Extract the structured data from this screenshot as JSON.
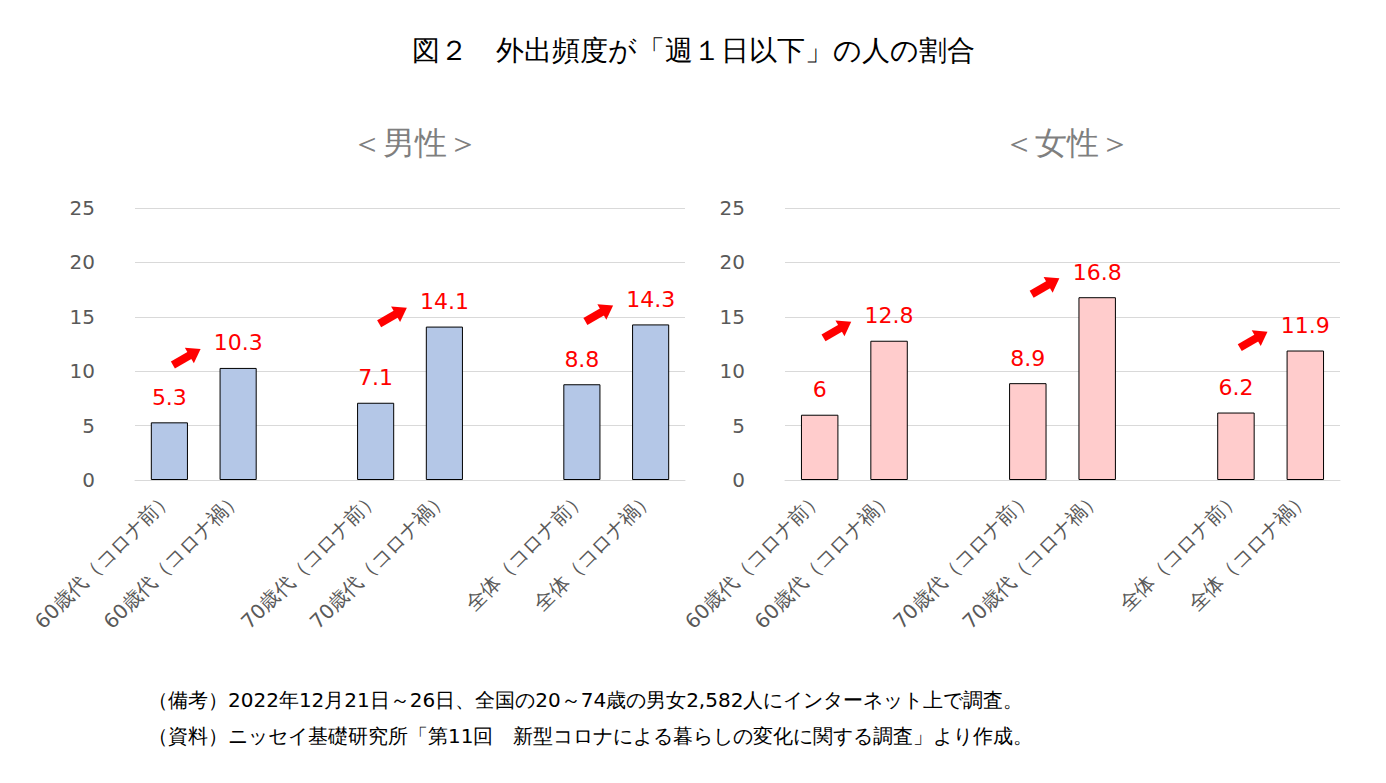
{
  "title": "図２　外出頻度が「週１日以下」の人の割合",
  "notes": [
    "（備考）2022年12月21日～26日、全国の20～74歳の男女2,582人にインターネット上で調査。",
    "（資料）ニッセイ基礎研究所「第11回　新型コロナによる暮らしの変化に関する調査」より作成。"
  ],
  "chart_data": [
    {
      "type": "bar",
      "title": "＜男性＞",
      "categories": [
        "60歳代（コロナ前）",
        "60歳代（コロナ禍）",
        null,
        "70歳代（コロナ前）",
        "70歳代（コロナ禍）",
        null,
        "全体（コロナ前）",
        "全体（コロナ禍）"
      ],
      "values": [
        5.3,
        10.3,
        null,
        7.1,
        14.1,
        null,
        8.8,
        14.3
      ],
      "color": "#b4c7e7",
      "ylim": [
        0,
        25
      ],
      "yticks": [
        0,
        5,
        10,
        15,
        20,
        25
      ],
      "grid": true,
      "data_labels": true
    },
    {
      "type": "bar",
      "title": "＜女性＞",
      "categories": [
        "60歳代（コロナ前）",
        "60歳代（コロナ禍）",
        null,
        "70歳代（コロナ前）",
        "70歳代（コロナ禍）",
        null,
        "全体（コロナ前）",
        "全体（コロナ禍）"
      ],
      "values": [
        6,
        12.8,
        null,
        8.9,
        16.8,
        null,
        6.2,
        11.9
      ],
      "color": "#ffcccc",
      "ylim": [
        0,
        25
      ],
      "yticks": [
        0,
        5,
        10,
        15,
        20,
        25
      ],
      "grid": true,
      "data_labels": true
    }
  ]
}
